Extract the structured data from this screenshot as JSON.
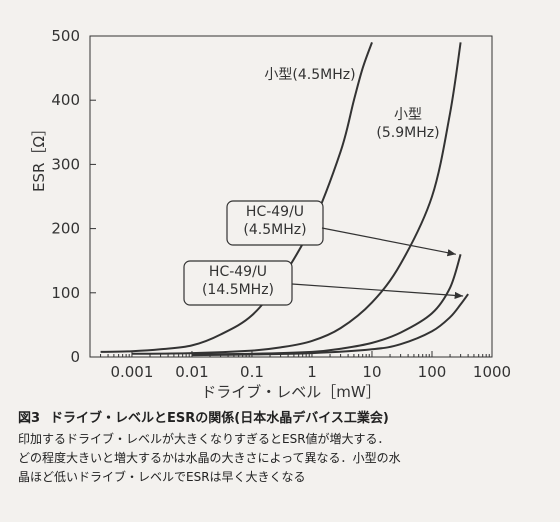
{
  "chart_data": {
    "type": "line",
    "xscale": "log",
    "xlabel": "ドライブ・レベル［mW］",
    "ylabel": "ESR［Ω］",
    "xlim": [
      0.0002,
      1000
    ],
    "ylim": [
      0,
      500
    ],
    "xticks": [
      0.001,
      0.01,
      0.1,
      1,
      10,
      100,
      1000
    ],
    "xtick_labels": [
      "0.001",
      "0.01",
      "0.1",
      "1",
      "10",
      "100",
      "1000"
    ],
    "yticks": [
      0,
      100,
      200,
      300,
      400,
      500
    ],
    "ytick_labels": [
      "0",
      "100",
      "200",
      "300",
      "400",
      "500"
    ],
    "series": [
      {
        "name": "小型(4.5MHz)",
        "x": [
          0.0003,
          0.001,
          0.003,
          0.01,
          0.03,
          0.1,
          0.3,
          1,
          3,
          5,
          7,
          10
        ],
        "y": [
          8,
          9,
          12,
          18,
          35,
          65,
          120,
          205,
          320,
          400,
          450,
          490
        ]
      },
      {
        "name": "小型(5.9MHz)",
        "x": [
          0.001,
          0.01,
          0.1,
          0.3,
          1,
          3,
          10,
          30,
          100,
          200,
          300
        ],
        "y": [
          5,
          6,
          10,
          15,
          25,
          45,
          85,
          145,
          250,
          380,
          490
        ]
      },
      {
        "name": "HC-49/U(4.5MHz)",
        "x": [
          0.01,
          0.1,
          1,
          3,
          10,
          30,
          100,
          200,
          300
        ],
        "y": [
          4,
          5,
          8,
          13,
          22,
          38,
          68,
          108,
          160
        ]
      },
      {
        "name": "HC-49/U(14.5MHz)",
        "x": [
          0.01,
          0.1,
          1,
          10,
          30,
          100,
          200,
          300,
          400
        ],
        "y": [
          3,
          4,
          6,
          12,
          20,
          40,
          62,
          82,
          98
        ]
      }
    ],
    "annotations": [
      {
        "lines": [
          "小型(4.5MHz)"
        ],
        "target": "小型(4.5MHz)"
      },
      {
        "lines": [
          "小型",
          "(5.9MHz)"
        ],
        "target": "小型(5.9MHz)"
      },
      {
        "lines": [
          "HC-49/U",
          "(4.5MHz)"
        ],
        "boxed": true,
        "arrow_to": [
          250,
          160
        ],
        "target": "HC-49/U(4.5MHz)"
      },
      {
        "lines": [
          "HC-49/U",
          "(14.5MHz)"
        ],
        "boxed": true,
        "arrow_to": [
          330,
          95
        ],
        "target": "HC-49/U(14.5MHz)"
      }
    ],
    "grid": false,
    "line_color": "#333333",
    "background": "#f3f1ee"
  },
  "caption": {
    "label": "図3",
    "title": "ドライブ・レベルとESRの関係(日本水晶デバイス工業会)",
    "body": [
      "印加するドライブ・レベルが大きくなりすぎるとESR値が増大する．",
      "どの程度大きいと増大するかは水晶の大きさによって異なる．小型の水",
      "晶ほど低いドライブ・レベルでESRは早く大きくなる"
    ]
  }
}
